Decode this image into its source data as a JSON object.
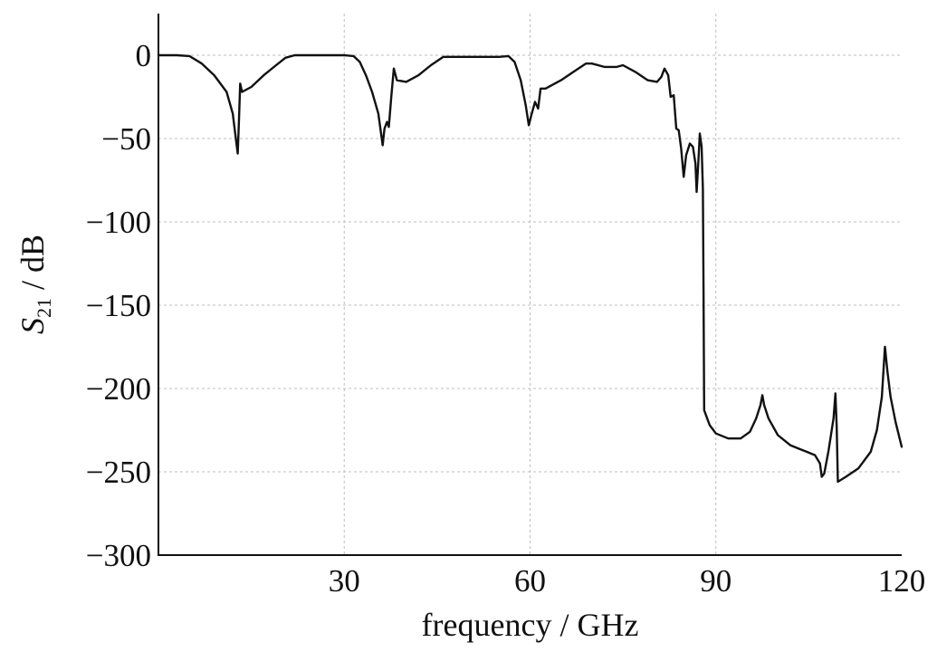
{
  "chart_data": {
    "type": "line",
    "title": "",
    "xlabel": "frequency / GHz",
    "ylabel": {
      "main": "S",
      "subscript": "21",
      "suffix": " / dB"
    },
    "xlim": [
      0,
      120
    ],
    "ylim": [
      -300,
      25
    ],
    "x_ticks": [
      30,
      60,
      90,
      120
    ],
    "x_tick_labels": [
      "30",
      "60",
      "90",
      "120"
    ],
    "y_ticks": [
      0,
      -50,
      -100,
      -150,
      -200,
      -250,
      -300
    ],
    "y_tick_labels": [
      "0",
      "−50",
      "−100",
      "−150",
      "−200",
      "−250",
      "−300"
    ],
    "grid": true,
    "series": [
      {
        "values": [
          [
            0,
            0
          ],
          [
            3,
            0
          ],
          [
            5,
            -0.5
          ],
          [
            7,
            -5
          ],
          [
            9,
            -12
          ],
          [
            11,
            -22
          ],
          [
            12,
            -35
          ],
          [
            12.5,
            -50
          ],
          [
            12.8,
            -59
          ],
          [
            13.0,
            -40
          ],
          [
            13.2,
            -17
          ],
          [
            13.5,
            -22
          ],
          [
            15,
            -19
          ],
          [
            17,
            -12
          ],
          [
            19,
            -6
          ],
          [
            20.5,
            -1.5
          ],
          [
            22,
            0
          ],
          [
            26,
            0
          ],
          [
            30,
            0
          ],
          [
            31.5,
            -0.5
          ],
          [
            32.5,
            -4
          ],
          [
            33.5,
            -12
          ],
          [
            34.5,
            -22
          ],
          [
            35.5,
            -35
          ],
          [
            36.2,
            -54
          ],
          [
            36.5,
            -44
          ],
          [
            36.9,
            -40
          ],
          [
            37.2,
            -43
          ],
          [
            37.6,
            -25
          ],
          [
            38.0,
            -8
          ],
          [
            38.5,
            -15
          ],
          [
            40,
            -16
          ],
          [
            42,
            -12
          ],
          [
            44,
            -6
          ],
          [
            46,
            -1
          ],
          [
            48,
            -1
          ],
          [
            52,
            -1
          ],
          [
            55,
            -1
          ],
          [
            56.5,
            -0.5
          ],
          [
            57.5,
            -4
          ],
          [
            58.5,
            -15
          ],
          [
            59.3,
            -30
          ],
          [
            59.8,
            -42
          ],
          [
            60.2,
            -36
          ],
          [
            60.8,
            -28
          ],
          [
            61.3,
            -32
          ],
          [
            61.7,
            -20
          ],
          [
            62.5,
            -20
          ],
          [
            65,
            -15
          ],
          [
            67,
            -10
          ],
          [
            69,
            -5
          ],
          [
            70,
            -5
          ],
          [
            72,
            -7
          ],
          [
            74,
            -7
          ],
          [
            75,
            -6
          ],
          [
            77,
            -10
          ],
          [
            79,
            -15
          ],
          [
            80.5,
            -16
          ],
          [
            81.2,
            -13
          ],
          [
            81.7,
            -8
          ],
          [
            82.3,
            -12
          ],
          [
            82.7,
            -25
          ],
          [
            83.2,
            -24
          ],
          [
            83.6,
            -44
          ],
          [
            84.0,
            -45
          ],
          [
            84.4,
            -56
          ],
          [
            84.8,
            -73
          ],
          [
            85.2,
            -60
          ],
          [
            85.8,
            -53
          ],
          [
            86.3,
            -55
          ],
          [
            86.7,
            -65
          ],
          [
            86.9,
            -82
          ],
          [
            87.2,
            -62
          ],
          [
            87.4,
            -47
          ],
          [
            87.7,
            -55
          ],
          [
            87.9,
            -80
          ],
          [
            88.0,
            -140
          ],
          [
            88.1,
            -213
          ],
          [
            88.5,
            -217
          ],
          [
            89,
            -222
          ],
          [
            90,
            -227
          ],
          [
            92,
            -230
          ],
          [
            94,
            -230
          ],
          [
            95.5,
            -226
          ],
          [
            96.5,
            -218
          ],
          [
            97.2,
            -210
          ],
          [
            97.5,
            -204
          ],
          [
            97.8,
            -210
          ],
          [
            98.5,
            -218
          ],
          [
            100,
            -228
          ],
          [
            102,
            -234
          ],
          [
            104,
            -237
          ],
          [
            106,
            -240
          ],
          [
            106.8,
            -245
          ],
          [
            107.1,
            -253
          ],
          [
            107.5,
            -251
          ],
          [
            108.2,
            -237
          ],
          [
            109,
            -218
          ],
          [
            109.3,
            -203
          ],
          [
            109.5,
            -223
          ],
          [
            109.7,
            -256
          ],
          [
            111,
            -253
          ],
          [
            113,
            -248
          ],
          [
            115,
            -238
          ],
          [
            116,
            -225
          ],
          [
            116.8,
            -205
          ],
          [
            117.3,
            -175
          ],
          [
            117.7,
            -190
          ],
          [
            118.2,
            -205
          ],
          [
            119,
            -220
          ],
          [
            120,
            -235
          ]
        ]
      }
    ]
  }
}
